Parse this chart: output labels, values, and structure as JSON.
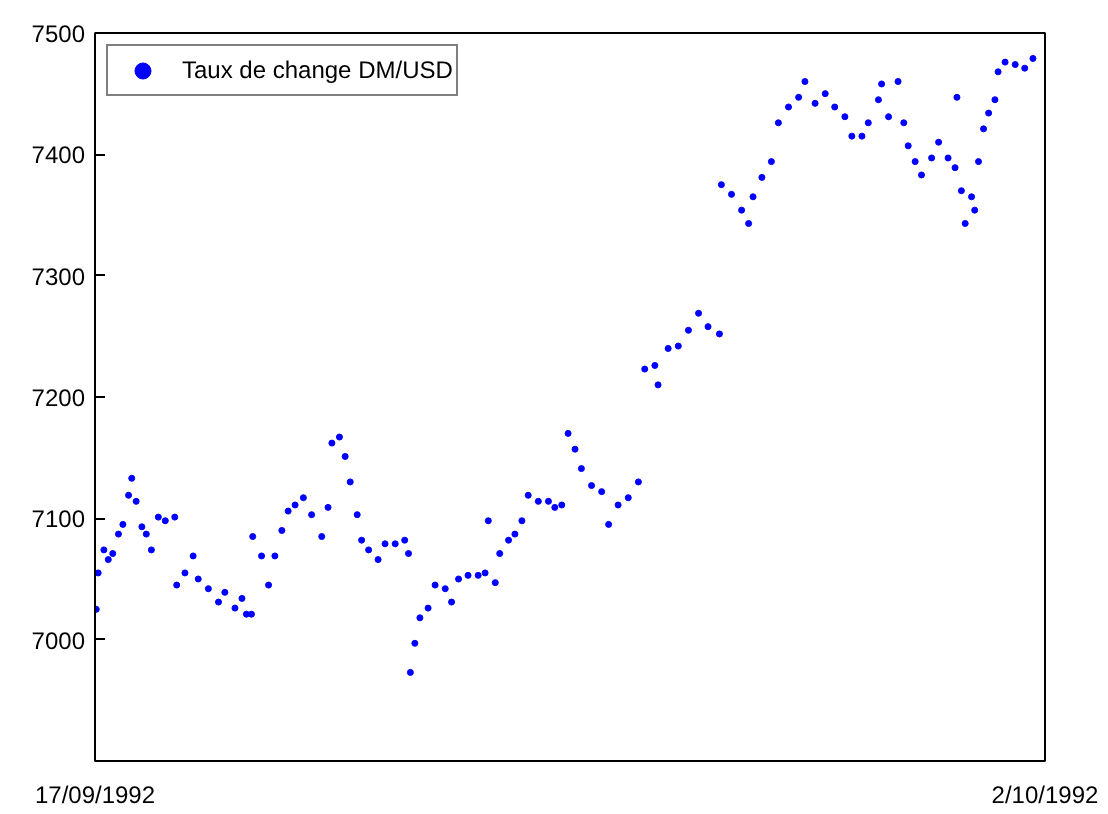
{
  "chart_data": {
    "type": "scatter",
    "xlim": [
      "1992-09-17",
      "1992-10-02"
    ],
    "xticks": [
      {
        "value": "1992-09-17",
        "label": "17/09/1992"
      },
      {
        "value": "1992-10-02",
        "label": "2/10/1992"
      }
    ],
    "ylim": [
      6900,
      7500
    ],
    "yticks": [
      {
        "value": 6900,
        "label": null
      },
      7000,
      7100,
      7200,
      7300,
      7400,
      7500
    ],
    "grid": false,
    "legend": "top left",
    "marker": "circle",
    "series": [
      {
        "name": "Taux de change DM/USD",
        "color": "#0000ff",
        "x": [
          "1992-09-17T00:29",
          "1992-09-17T01:12",
          "1992-09-17T03:22",
          "1992-09-17T05:02",
          "1992-09-17T06:43",
          "1992-09-17T08:53",
          "1992-09-17T10:34",
          "1992-09-17T12:43",
          "1992-09-17T13:55",
          "1992-09-17T15:36",
          "1992-09-17T17:46",
          "1992-09-17T19:26",
          "1992-09-17T21:22",
          "1992-09-18T00:00",
          "1992-09-18T02:38",
          "1992-09-18T06:14",
          "1992-09-18T06:58",
          "1992-09-18T10:05",
          "1992-09-18T13:12",
          "1992-09-18T15:07",
          "1992-09-18T18:58",
          "1992-09-18T22:48",
          "1992-09-19T01:12",
          "1992-09-19T05:02",
          "1992-09-19T07:41",
          "1992-09-19T09:22",
          "1992-09-19T11:17",
          "1992-09-19T11:46",
          "1992-09-19T15:07",
          "1992-09-19T17:46",
          "1992-09-19T20:10",
          "1992-09-19T22:48",
          "1992-09-20T01:12",
          "1992-09-20T03:50",
          "1992-09-20T06:58",
          "1992-09-20T10:05",
          "1992-09-20T13:55",
          "1992-09-20T16:19",
          "1992-09-20T17:46",
          "1992-09-20T20:38",
          "1992-09-20T22:48",
          "1992-09-21T00:43",
          "1992-09-21T03:22",
          "1992-09-21T05:02",
          "1992-09-21T07:41",
          "1992-09-21T11:17",
          "1992-09-21T13:55",
          "1992-09-21T17:46",
          "1992-09-21T21:22",
          "1992-09-21T22:48",
          "1992-09-21T23:31",
          "1992-09-22T01:12",
          "1992-09-22T03:07",
          "1992-09-22T06:14",
          "1992-09-22T08:53",
          "1992-09-22T12:43",
          "1992-09-22T15:07",
          "1992-09-22T17:46",
          "1992-09-22T21:22",
          "1992-09-23T01:12",
          "1992-09-23T03:50",
          "1992-09-23T05:02",
          "1992-09-23T07:41",
          "1992-09-23T09:22",
          "1992-09-23T12:43",
          "1992-09-23T15:07",
          "1992-09-23T17:46",
          "1992-09-23T20:10",
          "1992-09-24T00:00",
          "1992-09-24T03:50",
          "1992-09-24T06:14",
          "1992-09-24T08:53",
          "1992-09-24T11:17",
          "1992-09-24T13:55",
          "1992-09-24T16:19",
          "1992-09-24T20:10",
          "1992-09-25T00:00",
          "1992-09-25T02:38",
          "1992-09-25T06:14",
          "1992-09-25T10:05",
          "1992-09-25T13:55",
          "1992-09-25T16:19",
          "1992-09-25T20:10",
          "1992-09-25T21:22",
          "1992-09-26T01:12",
          "1992-09-26T05:02",
          "1992-09-26T08:53",
          "1992-09-26T12:43",
          "1992-09-26T16:19",
          "1992-09-26T20:38",
          "1992-09-26T21:22",
          "1992-09-27T01:12",
          "1992-09-27T05:02",
          "1992-09-27T07:41",
          "1992-09-27T09:22",
          "1992-09-27T12:43",
          "1992-09-27T16:19",
          "1992-09-27T18:58",
          "1992-09-27T22:48",
          "1992-09-28T02:38",
          "1992-09-28T05:02",
          "1992-09-28T08:53",
          "1992-09-28T12:43",
          "1992-09-28T16:19",
          "1992-09-28T20:10",
          "1992-09-28T22:48",
          "1992-09-29T02:38",
          "1992-09-29T05:02",
          "1992-09-29T08:53",
          "1992-09-29T10:05",
          "1992-09-29T12:43",
          "1992-09-29T16:19",
          "1992-09-29T18:29",
          "1992-09-29T20:10",
          "1992-09-29T22:48",
          "1992-09-30T01:12",
          "1992-09-30T05:02",
          "1992-09-30T07:41",
          "1992-09-30T11:17",
          "1992-09-30T13:55",
          "1992-09-30T14:38",
          "1992-09-30T16:19",
          "1992-09-30T17:46",
          "1992-09-30T20:10",
          "1992-09-30T21:22",
          "1992-09-30T22:48",
          "1992-10-01T00:43",
          "1992-10-01T02:38",
          "1992-10-01T05:02",
          "1992-10-01T06:14",
          "1992-10-01T08:53",
          "1992-10-01T12:43",
          "1992-10-01T16:19",
          "1992-10-01T19:26"
        ],
        "values": [
          7025,
          7055,
          7074,
          7066,
          7071,
          7087,
          7095,
          7119,
          7133,
          7114,
          7093,
          7087,
          7074,
          7101,
          7098,
          7101,
          7045,
          7055,
          7069,
          7050,
          7042,
          7031,
          7039,
          7026,
          7034,
          7021,
          7021,
          7085,
          7069,
          7045,
          7069,
          7090,
          7106,
          7111,
          7117,
          7103,
          7085,
          7109,
          7162,
          7167,
          7151,
          7130,
          7103,
          7082,
          7074,
          7066,
          7079,
          7079,
          7082,
          7071,
          6973,
          6997,
          7018,
          7026,
          7045,
          7042,
          7031,
          7050,
          7053,
          7053,
          7055,
          7098,
          7047,
          7071,
          7082,
          7087,
          7098,
          7119,
          7114,
          7114,
          7109,
          7111,
          7170,
          7157,
          7141,
          7127,
          7122,
          7095,
          7111,
          7117,
          7130,
          7223,
          7226,
          7210,
          7240,
          7242,
          7255,
          7269,
          7258,
          7252,
          7375,
          7367,
          7354,
          7343,
          7365,
          7381,
          7394,
          7426,
          7439,
          7447,
          7460,
          7442,
          7450,
          7439,
          7431,
          7415,
          7415,
          7426,
          7445,
          7458,
          7431,
          7460,
          7426,
          7407,
          7394,
          7383,
          7397,
          7410,
          7397,
          7389,
          7447,
          7370,
          7343,
          7365,
          7354,
          7394,
          7421,
          7434,
          7445,
          7468,
          7476,
          7474,
          7471,
          7479
        ]
      }
    ]
  }
}
